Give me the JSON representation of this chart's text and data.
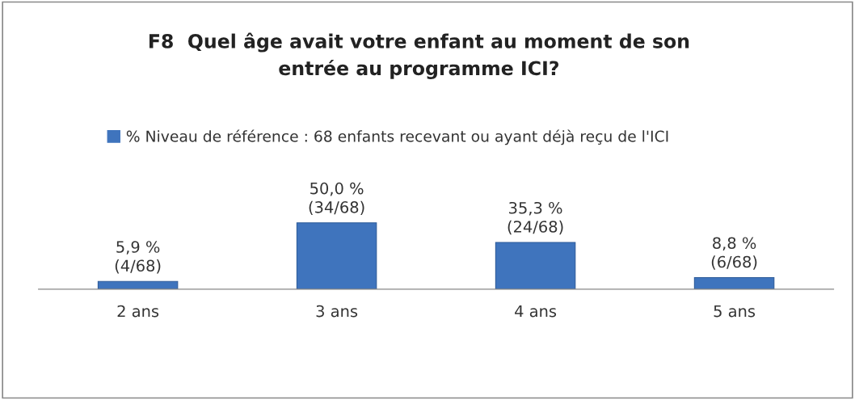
{
  "chart_data": {
    "type": "bar",
    "title": "F8  Quel âge avait votre enfant au moment de son\nentrée au programme ICI?",
    "categories": [
      "2 ans",
      "3 ans",
      "4 ans",
      "5 ans"
    ],
    "series": [
      {
        "name": "% Niveau de référence : 68 enfants recevant ou ayant déjà reçu de l'ICI",
        "color": "#3f74bd",
        "values": [
          5.9,
          50.0,
          35.3,
          8.8
        ],
        "value_labels": [
          "5,9 %\n(4/68)",
          "50,0 %\n(34/68)",
          "35,3 %\n(24/68)",
          "8,8 %\n(6/68)"
        ]
      }
    ],
    "legend": "top",
    "grid": false
  }
}
